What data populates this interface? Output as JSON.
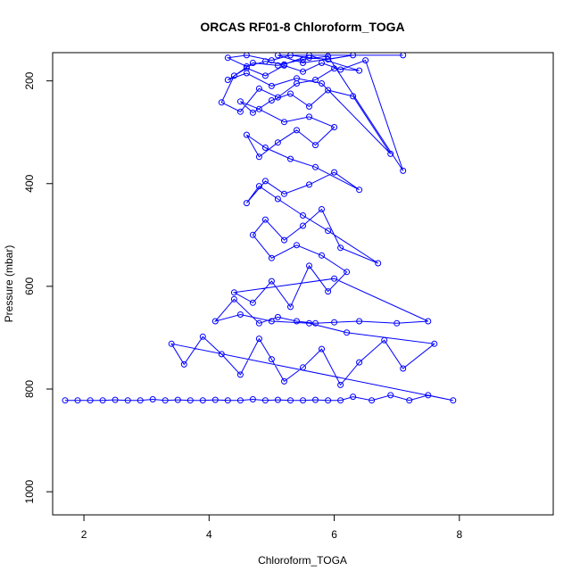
{
  "chart_data": {
    "type": "scatter",
    "title": "ORCAS RF01-8 Chloroform_TOGA",
    "xlabel": "Chloroform_TOGA",
    "ylabel": "Pressure (mbar)",
    "xlim": [
      1.5,
      9.5
    ],
    "ylim": [
      1045,
      145
    ],
    "y_reversed": true,
    "x_ticks": [
      2,
      4,
      6,
      8
    ],
    "y_ticks": [
      200,
      400,
      600,
      800,
      1000
    ],
    "grid": false,
    "legend": "none",
    "color": "#0000ff",
    "marker": "open-circle",
    "connected": true,
    "series": [
      {
        "x": [
          1.7,
          1.9,
          2.1,
          2.3,
          2.5,
          2.7,
          2.9,
          3.1,
          3.3,
          3.5,
          3.7,
          3.9,
          4.1,
          4.3,
          4.5,
          4.7,
          4.9,
          5.1,
          5.3,
          5.5,
          5.7,
          5.9,
          6.1,
          6.3,
          6.6,
          6.9,
          7.2,
          7.5,
          7.9,
          3.4,
          3.6,
          3.9,
          4.2,
          4.5,
          4.8,
          5.0,
          5.2,
          5.5,
          5.8,
          6.1,
          6.4,
          6.8,
          7.1,
          7.6,
          6.2,
          5.6,
          5.0,
          4.5,
          4.1,
          4.4,
          4.8,
          5.1,
          5.4,
          5.7,
          6.0,
          6.4,
          7.0,
          7.5,
          6.0,
          4.4,
          4.7,
          5.0,
          5.3,
          5.6,
          5.9,
          6.2,
          5.8,
          5.4,
          5.0,
          4.7,
          4.9,
          5.2,
          5.5,
          5.8,
          6.1,
          6.7,
          5.9,
          5.5,
          5.1,
          4.8,
          4.6,
          4.9,
          5.2,
          5.6,
          6.0,
          6.4,
          5.7,
          5.3,
          4.9,
          4.6,
          4.8,
          5.1,
          5.4,
          5.7,
          6.0,
          5.6,
          5.2,
          4.8,
          4.5,
          4.7,
          5.0,
          5.3,
          5.6,
          5.9,
          6.3,
          6.9,
          5.8,
          5.4,
          5.0,
          4.6,
          4.3,
          4.6,
          4.9,
          5.2,
          5.5,
          5.8,
          6.1,
          6.5,
          7.1,
          5.9,
          5.5,
          5.1,
          4.7,
          4.4,
          4.2,
          4.5,
          4.8,
          5.1,
          5.4,
          5.7,
          6.0,
          6.4,
          5.6,
          5.2,
          4.9,
          4.6,
          4.3,
          4.6,
          5.0,
          5.3,
          5.6,
          5.9,
          6.3,
          5.5,
          5.1,
          7.1
        ],
        "y": [
          822,
          822,
          822,
          822,
          821,
          822,
          822,
          820,
          822,
          821,
          822,
          822,
          821,
          822,
          822,
          820,
          822,
          821,
          822,
          822,
          821,
          822,
          822,
          815,
          822,
          812,
          822,
          812,
          822,
          712,
          752,
          698,
          732,
          772,
          702,
          742,
          785,
          758,
          722,
          792,
          748,
          705,
          760,
          712,
          690,
          672,
          668,
          655,
          668,
          625,
          672,
          660,
          668,
          672,
          670,
          668,
          672,
          668,
          585,
          612,
          632,
          590,
          640,
          560,
          610,
          572,
          540,
          520,
          545,
          500,
          470,
          510,
          482,
          450,
          525,
          555,
          492,
          462,
          430,
          405,
          438,
          395,
          420,
          402,
          378,
          412,
          368,
          352,
          330,
          305,
          348,
          320,
          296,
          325,
          290,
          270,
          280,
          255,
          240,
          262,
          238,
          225,
          250,
          218,
          230,
          342,
          205,
          195,
          210,
          185,
          198,
          175,
          190,
          170,
          182,
          165,
          178,
          160,
          375,
          152,
          158,
          170,
          165,
          190,
          242,
          260,
          215,
          232,
          205,
          198,
          176,
          180,
          150,
          168,
          162,
          172,
          155,
          150,
          160,
          150,
          155,
          158,
          150,
          165,
          150,
          150
        ]
      }
    ]
  }
}
